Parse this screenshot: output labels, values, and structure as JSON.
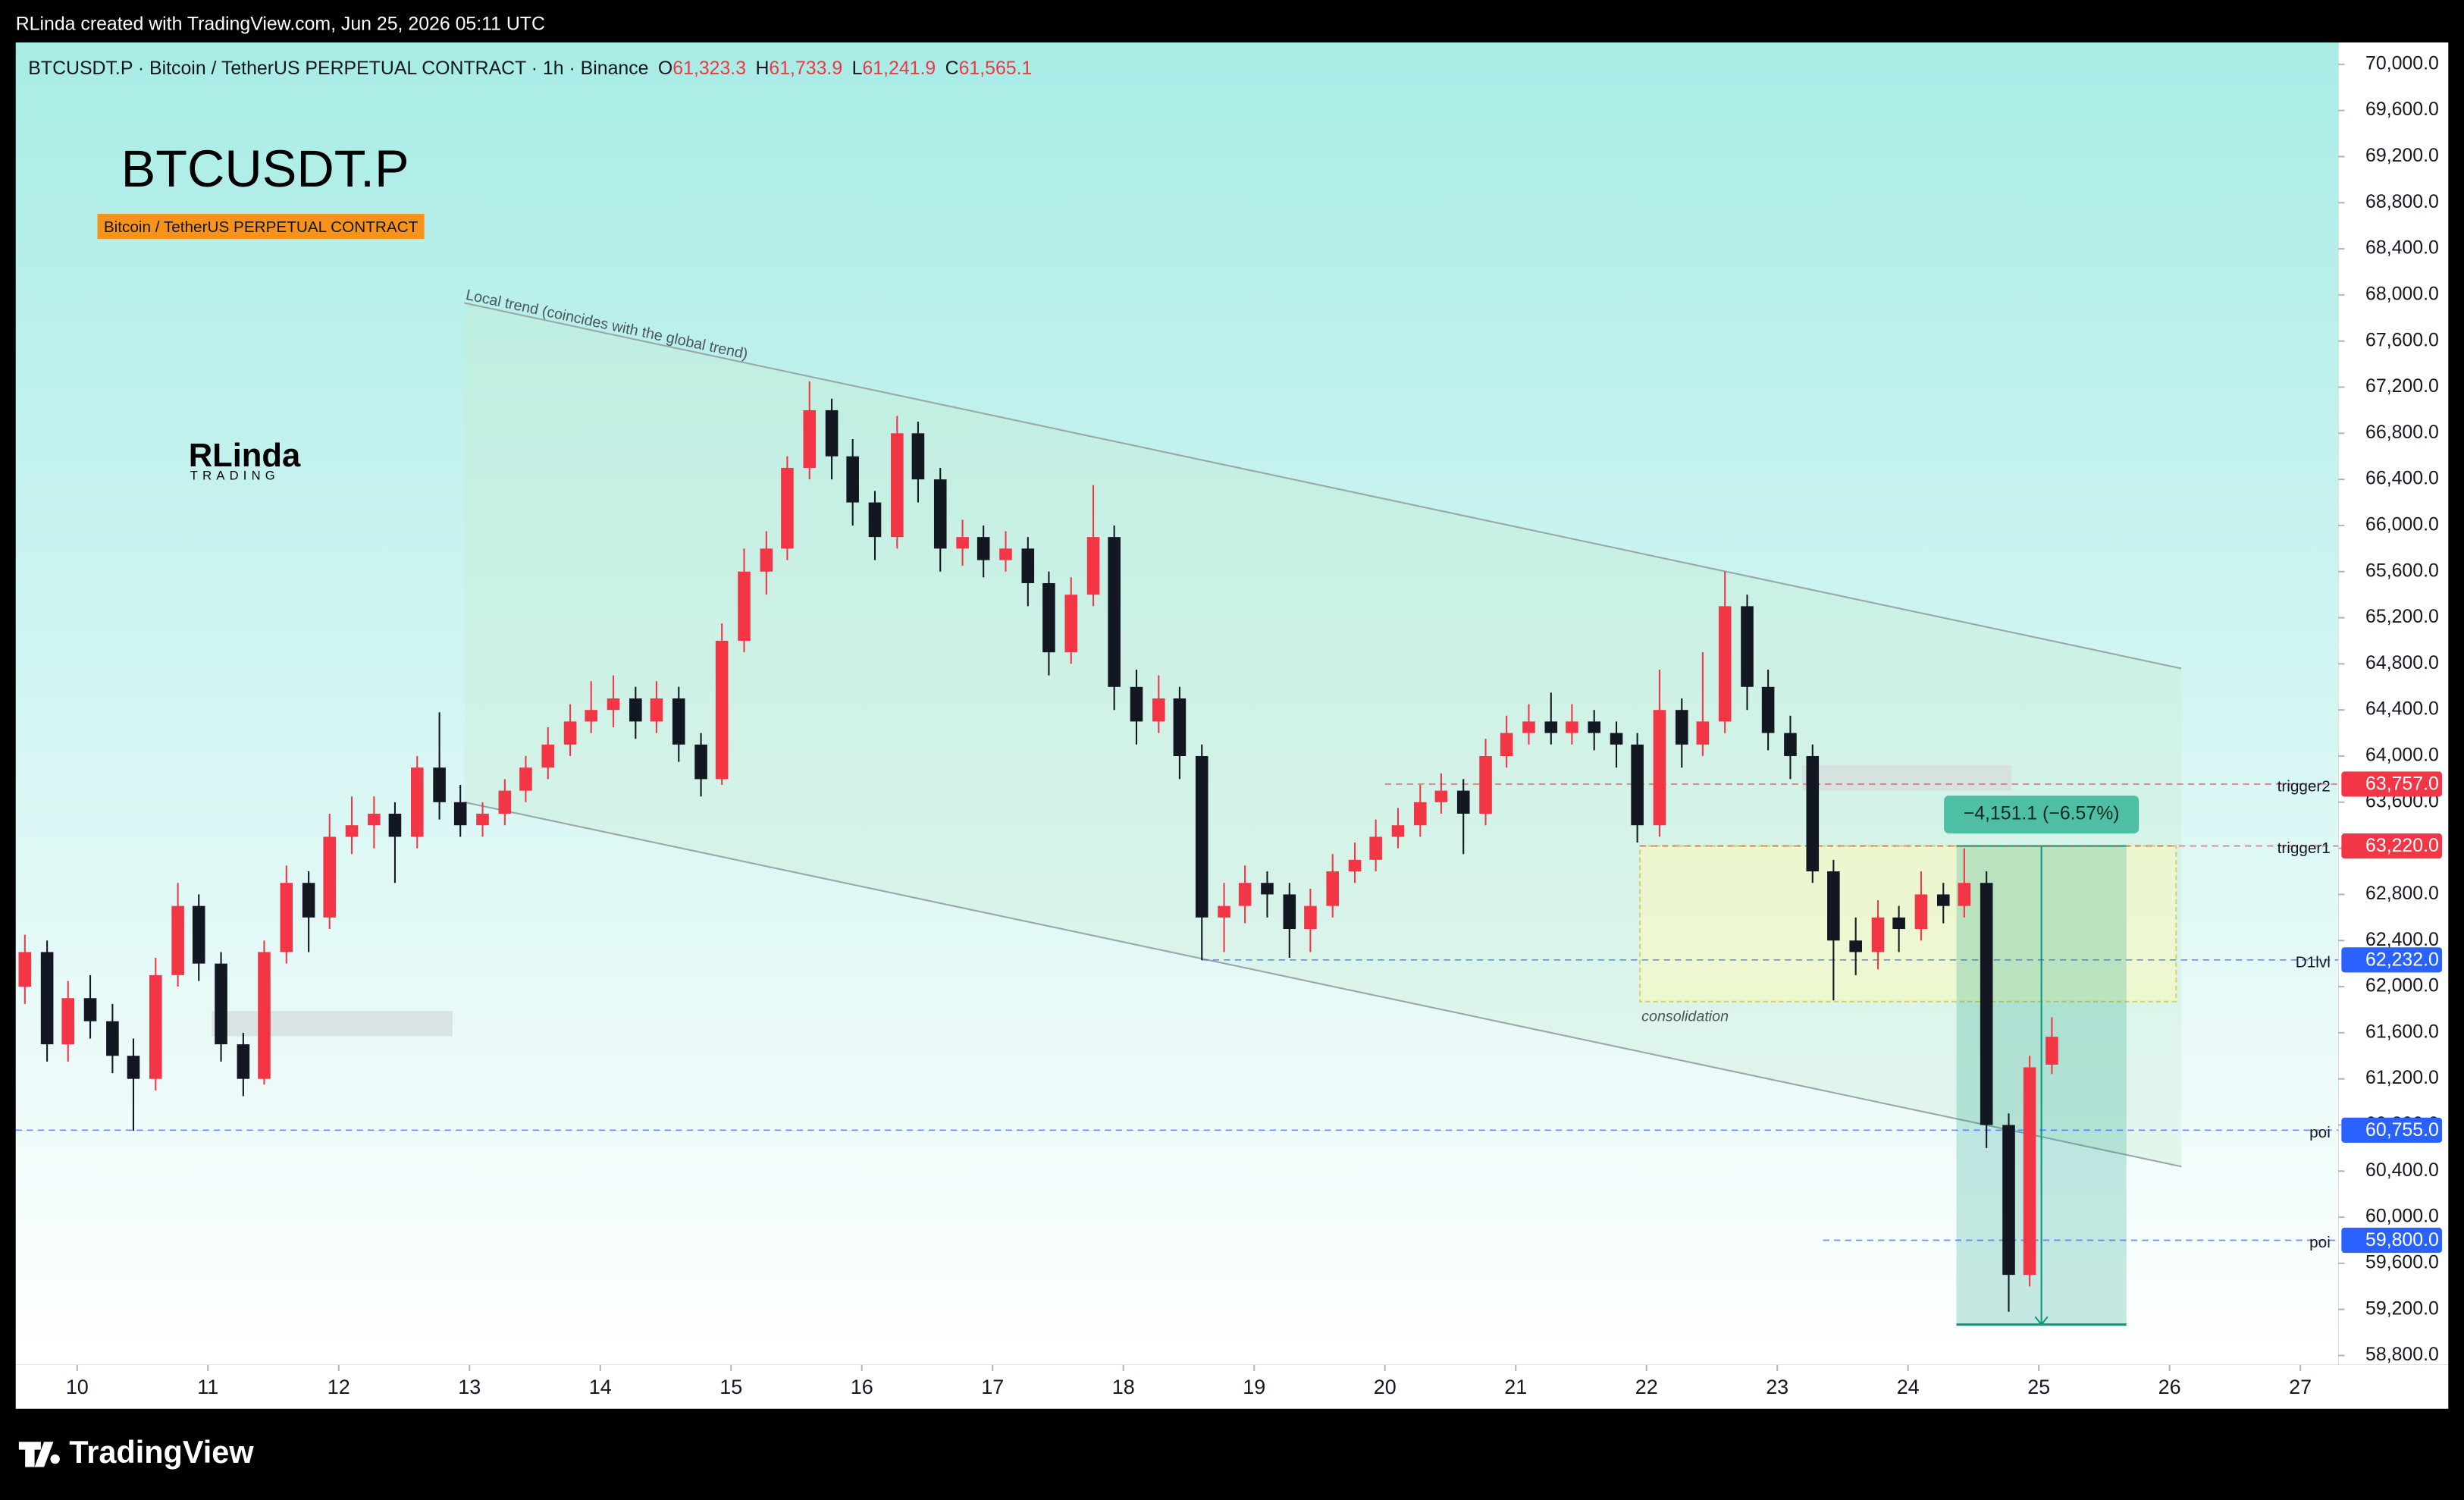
{
  "header": {
    "caption": "RLinda created with TradingView.com, Jun 25, 2026 05:11 UTC",
    "symbol_line": "BTCUSDT.P · Bitcoin / TetherUS PERPETUAL CONTRACT · 1h · Binance",
    "ohlc": [
      {
        "key": "O",
        "value": "61,323.3"
      },
      {
        "key": "H",
        "value": "61,733.9"
      },
      {
        "key": "L",
        "value": "61,241.9"
      },
      {
        "key": "C",
        "value": "61,565.1"
      }
    ]
  },
  "watermark": {
    "symbol": "BTCUSDT.P",
    "description": "Bitcoin / TetherUS PERPETUAL CONTRACT"
  },
  "logo": {
    "name": "RLinda",
    "tagline": "TRADING"
  },
  "footer": "TradingView",
  "chart_data": {
    "type": "candlestick",
    "up_color": "#f23645",
    "down_color": "#131722",
    "x": [
      9.6,
      9.77,
      9.93,
      10.1,
      10.27,
      10.43,
      10.6,
      10.77,
      10.93,
      11.1,
      11.27,
      11.43,
      11.6,
      11.77,
      11.93,
      12.1,
      12.27,
      12.43,
      12.6,
      12.77,
      12.93,
      13.1,
      13.27,
      13.43,
      13.6,
      13.77,
      13.93,
      14.1,
      14.27,
      14.43,
      14.6,
      14.77,
      14.93,
      15.1,
      15.27,
      15.43,
      15.6,
      15.77,
      15.93,
      16.1,
      16.27,
      16.43,
      16.6,
      16.77,
      16.93,
      17.1,
      17.27,
      17.43,
      17.6,
      17.77,
      17.93,
      18.1,
      18.27,
      18.43,
      18.6,
      18.77,
      18.93,
      19.1,
      19.27,
      19.43,
      19.6,
      19.77,
      19.93,
      20.1,
      20.27,
      20.43,
      20.6,
      20.77,
      20.93,
      21.1,
      21.27,
      21.43,
      21.6,
      21.77,
      21.93,
      22.1,
      22.27,
      22.43,
      22.6,
      22.77,
      22.93,
      23.1,
      23.27,
      23.43,
      23.6,
      23.77,
      23.93,
      24.1,
      24.27,
      24.43,
      24.6,
      24.77,
      24.93,
      25.1
    ],
    "open": [
      62000,
      62300,
      61500,
      61900,
      61700,
      61400,
      61200,
      62100,
      62700,
      62200,
      61500,
      61200,
      62300,
      62900,
      62600,
      63300,
      63400,
      63500,
      63300,
      63900,
      63600,
      63400,
      63500,
      63700,
      63900,
      64100,
      64300,
      64400,
      64500,
      64300,
      64500,
      64100,
      63800,
      65000,
      65600,
      65800,
      66500,
      67000,
      66600,
      66200,
      65900,
      66800,
      66400,
      65800,
      65900,
      65700,
      65800,
      65500,
      64900,
      65400,
      65900,
      64600,
      64300,
      64500,
      64000,
      62600,
      62700,
      62900,
      62800,
      62500,
      62700,
      63000,
      63100,
      63300,
      63400,
      63600,
      63700,
      63500,
      64000,
      64200,
      64300,
      64200,
      64300,
      64200,
      64100,
      63400,
      64400,
      64100,
      64300,
      65300,
      64600,
      64200,
      64000,
      63000,
      62400,
      62300,
      62600,
      62500,
      62800,
      62700,
      62900,
      60800,
      59500,
      61323.3
    ],
    "high": [
      62450,
      62400,
      62050,
      62100,
      61850,
      61550,
      62250,
      62900,
      62800,
      62300,
      61600,
      62400,
      63050,
      63000,
      63500,
      63650,
      63650,
      63600,
      64000,
      64380,
      63750,
      63600,
      63800,
      64000,
      64250,
      64450,
      64650,
      64700,
      64600,
      64650,
      64600,
      64200,
      65150,
      65800,
      65950,
      66600,
      67250,
      67100,
      66750,
      66300,
      66950,
      66900,
      66500,
      66050,
      66000,
      65950,
      65900,
      65600,
      65550,
      66350,
      66000,
      64750,
      64700,
      64600,
      64100,
      62900,
      63050,
      63000,
      62900,
      62850,
      63150,
      63250,
      63450,
      63550,
      63750,
      63850,
      63800,
      64150,
      64350,
      64450,
      64550,
      64450,
      64400,
      64300,
      64200,
      64750,
      64500,
      64900,
      65600,
      65400,
      64750,
      64350,
      64100,
      63100,
      62600,
      62750,
      62700,
      63000,
      62900,
      63200,
      63000,
      60900,
      61400,
      61733.9
    ],
    "low": [
      61850,
      61350,
      61350,
      61550,
      61250,
      60750,
      61100,
      62000,
      62050,
      61350,
      61050,
      61150,
      62200,
      62300,
      62500,
      63150,
      63200,
      62900,
      63200,
      63450,
      63300,
      63300,
      63400,
      63600,
      63800,
      64000,
      64200,
      64250,
      64150,
      64200,
      63950,
      63650,
      63750,
      64900,
      65400,
      65700,
      66400,
      66400,
      66000,
      65700,
      65800,
      66200,
      65600,
      65650,
      65550,
      65600,
      65300,
      64700,
      64800,
      65300,
      64400,
      64100,
      64200,
      63800,
      62230,
      62300,
      62550,
      62600,
      62250,
      62300,
      62600,
      62900,
      63000,
      63200,
      63300,
      63500,
      63150,
      63400,
      63900,
      64100,
      64100,
      64100,
      64050,
      63900,
      63250,
      63300,
      63900,
      64000,
      64200,
      64400,
      64050,
      63800,
      62900,
      61880,
      62100,
      62150,
      62300,
      62400,
      62550,
      62600,
      60600,
      59180,
      59400,
      61241.9
    ],
    "close": [
      62300,
      61500,
      61900,
      61700,
      61400,
      61200,
      62100,
      62700,
      62200,
      61500,
      61200,
      62300,
      62900,
      62600,
      63300,
      63400,
      63500,
      63300,
      63900,
      63600,
      63400,
      63500,
      63700,
      63900,
      64100,
      64300,
      64400,
      64500,
      64300,
      64500,
      64100,
      63800,
      65000,
      65600,
      65800,
      66500,
      67000,
      66600,
      66200,
      65900,
      66800,
      66400,
      65800,
      65900,
      65700,
      65800,
      65500,
      64900,
      65400,
      65900,
      64600,
      64300,
      64500,
      64000,
      62600,
      62700,
      62900,
      62800,
      62500,
      62700,
      63000,
      63100,
      63300,
      63400,
      63600,
      63700,
      63500,
      64000,
      64200,
      64300,
      64200,
      64300,
      64200,
      64100,
      63400,
      64400,
      64100,
      64300,
      65300,
      64600,
      64200,
      64000,
      63000,
      62400,
      62300,
      62600,
      62500,
      62800,
      62700,
      62900,
      60800,
      59500,
      61300,
      61565.1
    ],
    "xlim": [
      9.53,
      27.29
    ],
    "xticks": [
      10,
      11,
      12,
      13,
      14,
      15,
      16,
      17,
      18,
      19,
      20,
      21,
      22,
      23,
      24,
      25,
      26,
      27
    ],
    "ylim": [
      58720,
      70190
    ],
    "yticks": [
      {
        "value": 58800,
        "label": "58,800.0"
      },
      {
        "value": 59200,
        "label": "59,200.0"
      },
      {
        "value": 59600,
        "label": "59,600.0"
      },
      {
        "value": 60000,
        "label": "60,000.0"
      },
      {
        "value": 60400,
        "label": "60,400.0"
      },
      {
        "value": 60800,
        "label": "60,800.0"
      },
      {
        "value": 61200,
        "label": "61,200.0"
      },
      {
        "value": 61600,
        "label": "61,600.0"
      },
      {
        "value": 62000,
        "label": "62,000.0"
      },
      {
        "value": 62400,
        "label": "62,400.0"
      },
      {
        "value": 62800,
        "label": "62,800.0"
      },
      {
        "value": 63200,
        "label": "63,200.0"
      },
      {
        "value": 63600,
        "label": "63,600.0"
      },
      {
        "value": 64000,
        "label": "64,000.0"
      },
      {
        "value": 64400,
        "label": "64,400.0"
      },
      {
        "value": 64800,
        "label": "64,800.0"
      },
      {
        "value": 65200,
        "label": "65,200.0"
      },
      {
        "value": 65600,
        "label": "65,600.0"
      },
      {
        "value": 66000,
        "label": "66,000.0"
      },
      {
        "value": 66400,
        "label": "66,400.0"
      },
      {
        "value": 66800,
        "label": "66,800.0"
      },
      {
        "value": 67200,
        "label": "67,200.0"
      },
      {
        "value": 67600,
        "label": "67,600.0"
      },
      {
        "value": 68000,
        "label": "68,000.0"
      },
      {
        "value": 68400,
        "label": "68,400.0"
      },
      {
        "value": 68800,
        "label": "68,800.0"
      },
      {
        "value": 69200,
        "label": "69,200.0"
      },
      {
        "value": 69600,
        "label": "69,600.0"
      },
      {
        "value": 70000,
        "label": "70,000.0"
      }
    ],
    "channel": {
      "label": "Local trend (coincides with the global trend)",
      "x": [
        12.96,
        26.09
      ],
      "upper": [
        67930,
        64760
      ],
      "lower": [
        63600,
        60440
      ]
    },
    "zones": [
      {
        "label": "consolidation",
        "x": [
          21.95,
          26.05
        ],
        "y": [
          61870,
          63220
        ],
        "color": "#f3f8c8"
      },
      {
        "x": [
          23.19,
          24.79
        ],
        "y": [
          63700,
          63920
        ],
        "color": "#d6dcdc"
      },
      {
        "x": [
          11.03,
          12.87
        ],
        "y": [
          61570,
          61790
        ],
        "color": "#d6dcdc"
      }
    ],
    "levels": [
      {
        "name": "trigger2",
        "value": {
          "value": 63757,
          "label": "63,757.0"
        },
        "start": 20.0,
        "color": "#f23645"
      },
      {
        "name": "trigger1",
        "value": {
          "value": 63220,
          "label": "63,220.0"
        },
        "start": 21.95,
        "color": "#f23645"
      },
      {
        "name": "D1lvl",
        "value": {
          "value": 62232,
          "label": "62,232.0"
        },
        "start": 18.6,
        "color": "#2962ff"
      },
      {
        "name": "poi",
        "value": {
          "value": 60755,
          "label": "60,755.0"
        },
        "start": 9.53,
        "color": "#2962ff"
      },
      {
        "name": "poi",
        "value": {
          "value": 59800,
          "label": "59,800.0"
        },
        "start": 23.35,
        "color": "#2962ff"
      }
    ],
    "position": {
      "x": [
        24.37,
        25.67
      ],
      "entry": 63220,
      "target": 59068.9,
      "label": "−4,151.1 (−6.57%)",
      "color": "#089981"
    }
  }
}
